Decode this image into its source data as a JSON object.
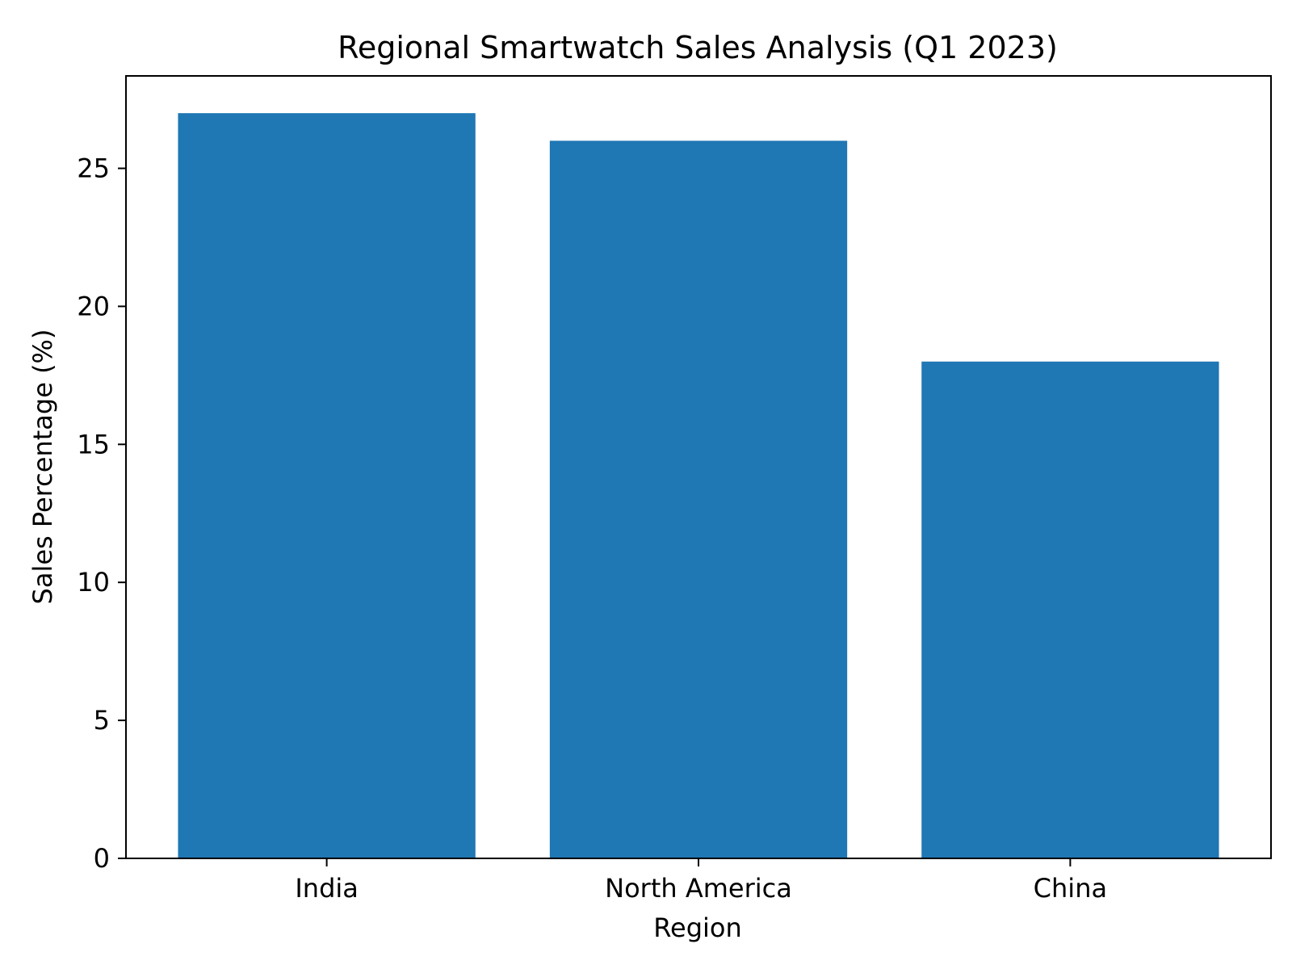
{
  "chart_data": {
    "type": "bar",
    "title": "Regional Smartwatch Sales Analysis (Q1 2023)",
    "xlabel": "Region",
    "ylabel": "Sales Percentage (%)",
    "categories": [
      "India",
      "North America",
      "China"
    ],
    "values": [
      27,
      26,
      18
    ],
    "ylim": [
      0,
      28.35
    ],
    "yticks": [
      0,
      5,
      10,
      15,
      20,
      25
    ],
    "ytick_labels": [
      "0",
      "5",
      "10",
      "15",
      "20",
      "25"
    ],
    "grid": false,
    "legend": "none",
    "bar_color": "#1f77b4"
  }
}
